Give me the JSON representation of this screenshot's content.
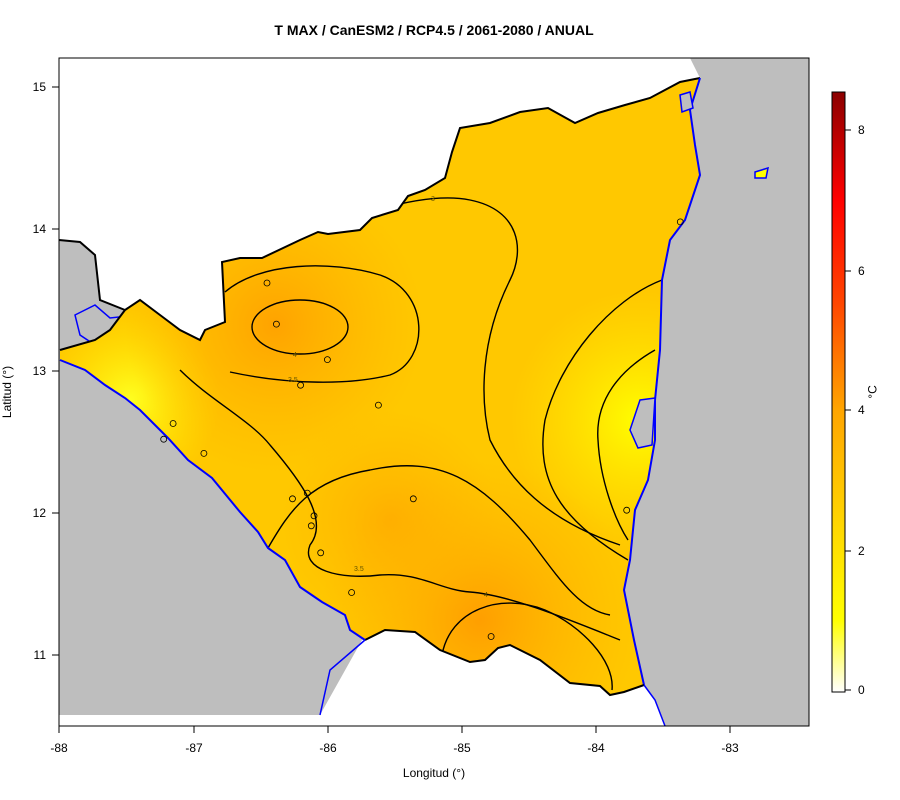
{
  "title": "T MAX / CanESM2 / RCP4.5 / 2061-2080 / ANUAL",
  "x_axis": {
    "label": "Longitud (°)",
    "ticks": [
      "-88",
      "-87",
      "-86",
      "-85",
      "-84",
      "-83"
    ]
  },
  "y_axis": {
    "label": "Latitud (°)",
    "ticks": [
      "15",
      "14",
      "13",
      "12",
      "11"
    ]
  },
  "colorbar": {
    "unit": "°C",
    "ticks": [
      "8",
      "6",
      "4",
      "2",
      "0"
    ],
    "min": 0,
    "max": 8.5,
    "colors": [
      "#ffffff",
      "#ffff00",
      "#ffa500",
      "#ff4500",
      "#ff0000",
      "#8b0000"
    ]
  },
  "contour_labels": [
    "3",
    "4",
    "3.5",
    "3.5",
    "4"
  ],
  "colors": {
    "land": "#bebebe",
    "coast": "#0000ff",
    "border": "#000000",
    "contour": "#000000"
  },
  "stations": [
    [
      -86.45,
      13.62
    ],
    [
      -86.38,
      13.33
    ],
    [
      -86.0,
      13.08
    ],
    [
      -86.2,
      12.9
    ],
    [
      -85.62,
      12.76
    ],
    [
      -87.15,
      12.63
    ],
    [
      -87.22,
      12.52
    ],
    [
      -86.92,
      12.42
    ],
    [
      -86.15,
      12.14
    ],
    [
      -86.26,
      12.1
    ],
    [
      -86.1,
      11.98
    ],
    [
      -86.12,
      11.91
    ],
    [
      -86.05,
      11.72
    ],
    [
      -85.82,
      11.44
    ],
    [
      -85.36,
      12.1
    ],
    [
      -84.78,
      11.13
    ],
    [
      -83.77,
      12.02
    ],
    [
      -83.37,
      14.05
    ]
  ]
}
